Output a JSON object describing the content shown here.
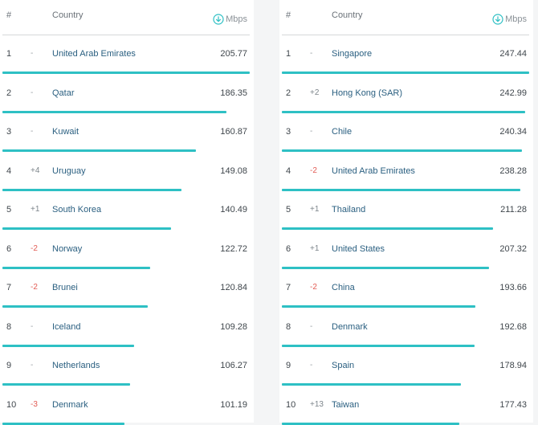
{
  "chart_data": [
    {
      "type": "table",
      "columns": [
        "#",
        "",
        "Country",
        "Mbps"
      ],
      "header": {
        "rank": "#",
        "country": "Country",
        "unit": "Mbps"
      },
      "rows": [
        {
          "rank": "1",
          "change": "-",
          "country": "United Arab Emirates",
          "speed": "205.77",
          "value": 205.77
        },
        {
          "rank": "2",
          "change": "-",
          "country": "Qatar",
          "speed": "186.35",
          "value": 186.35
        },
        {
          "rank": "3",
          "change": "-",
          "country": "Kuwait",
          "speed": "160.87",
          "value": 160.87
        },
        {
          "rank": "4",
          "change": "+4",
          "country": "Uruguay",
          "speed": "149.08",
          "value": 149.08
        },
        {
          "rank": "5",
          "change": "+1",
          "country": "South Korea",
          "speed": "140.49",
          "value": 140.49
        },
        {
          "rank": "6",
          "change": "-2",
          "country": "Norway",
          "speed": "122.72",
          "value": 122.72
        },
        {
          "rank": "7",
          "change": "-2",
          "country": "Brunei",
          "speed": "120.84",
          "value": 120.84
        },
        {
          "rank": "8",
          "change": "-",
          "country": "Iceland",
          "speed": "109.28",
          "value": 109.28
        },
        {
          "rank": "9",
          "change": "-",
          "country": "Netherlands",
          "speed": "106.27",
          "value": 106.27
        },
        {
          "rank": "10",
          "change": "-3",
          "country": "Denmark",
          "speed": "101.19",
          "value": 101.19
        }
      ]
    },
    {
      "type": "table",
      "columns": [
        "#",
        "",
        "Country",
        "Mbps"
      ],
      "header": {
        "rank": "#",
        "country": "Country",
        "unit": "Mbps"
      },
      "rows": [
        {
          "rank": "1",
          "change": "-",
          "country": "Singapore",
          "speed": "247.44",
          "value": 247.44
        },
        {
          "rank": "2",
          "change": "+2",
          "country": "Hong Kong (SAR)",
          "speed": "242.99",
          "value": 242.99
        },
        {
          "rank": "3",
          "change": "-",
          "country": "Chile",
          "speed": "240.34",
          "value": 240.34
        },
        {
          "rank": "4",
          "change": "-2",
          "country": "United Arab Emirates",
          "speed": "238.28",
          "value": 238.28
        },
        {
          "rank": "5",
          "change": "+1",
          "country": "Thailand",
          "speed": "211.28",
          "value": 211.28
        },
        {
          "rank": "6",
          "change": "+1",
          "country": "United States",
          "speed": "207.32",
          "value": 207.32
        },
        {
          "rank": "7",
          "change": "-2",
          "country": "China",
          "speed": "193.66",
          "value": 193.66
        },
        {
          "rank": "8",
          "change": "-",
          "country": "Denmark",
          "speed": "192.68",
          "value": 192.68
        },
        {
          "rank": "9",
          "change": "-",
          "country": "Spain",
          "speed": "178.94",
          "value": 178.94
        },
        {
          "rank": "10",
          "change": "+13",
          "country": "Taiwan",
          "speed": "177.43",
          "value": 177.43
        }
      ]
    }
  ],
  "colors": {
    "bar": "#2ec0c4",
    "change_down": "#e25c55",
    "country_text": "#2a5f80"
  },
  "icons": {
    "unit": "download-arrow-icon"
  }
}
